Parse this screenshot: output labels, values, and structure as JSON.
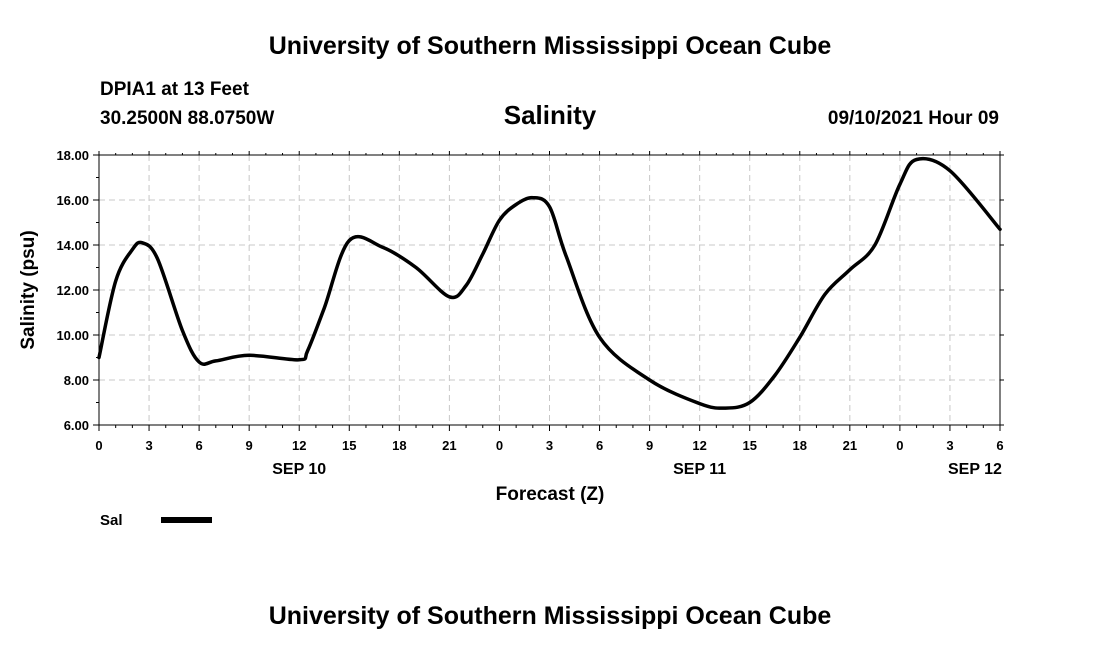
{
  "header": {
    "title": "University of Southern Mississippi Ocean Cube",
    "station": "DPIA1 at 13 Feet",
    "coords": "30.2500N  88.0750W",
    "timestamp": "09/10/2021 Hour 09"
  },
  "footer": {
    "title": "University of Southern Mississippi Ocean Cube"
  },
  "chart_data": {
    "type": "line",
    "title": "Salinity",
    "xlabel": "Forecast (Z)",
    "ylabel": "Salinity (psu)",
    "ylim": [
      6,
      18
    ],
    "y_ticks": [
      "6.00",
      "8.00",
      "10.00",
      "12.00",
      "14.00",
      "16.00",
      "18.00"
    ],
    "x_tick_labels": [
      "0",
      "3",
      "6",
      "9",
      "12",
      "15",
      "18",
      "21",
      "0",
      "3",
      "6",
      "9",
      "12",
      "15",
      "18",
      "21",
      "0",
      "3",
      "6"
    ],
    "x_range_hours": [
      0,
      54
    ],
    "day_labels": [
      {
        "label": "SEP 10",
        "hour": 12
      },
      {
        "label": "SEP 11",
        "hour": 36
      },
      {
        "label": "SEP 12",
        "hour": 52.5
      }
    ],
    "grid": true,
    "legend_position": "bottom-left",
    "series": [
      {
        "name": "Sal",
        "color": "#000000",
        "x": [
          0,
          1,
          2,
          2.6,
          3.5,
          5,
          6,
          7,
          9,
          12,
          12.5,
          13.5,
          15,
          17,
          19,
          21,
          22,
          23,
          24,
          25,
          26,
          27,
          28,
          30,
          33,
          36,
          37.5,
          39,
          40.5,
          42,
          43.5,
          45,
          46.5,
          48,
          49,
          51,
          54
        ],
        "y": [
          9.0,
          12.4,
          13.8,
          14.1,
          13.4,
          10.2,
          8.8,
          8.85,
          9.1,
          8.9,
          9.3,
          11.2,
          14.2,
          13.9,
          13.0,
          11.7,
          12.2,
          13.6,
          15.1,
          15.8,
          16.1,
          15.7,
          13.5,
          9.9,
          8.0,
          6.95,
          6.75,
          7.0,
          8.2,
          9.9,
          11.8,
          12.9,
          14.0,
          16.7,
          17.8,
          17.3,
          14.7
        ]
      }
    ]
  }
}
